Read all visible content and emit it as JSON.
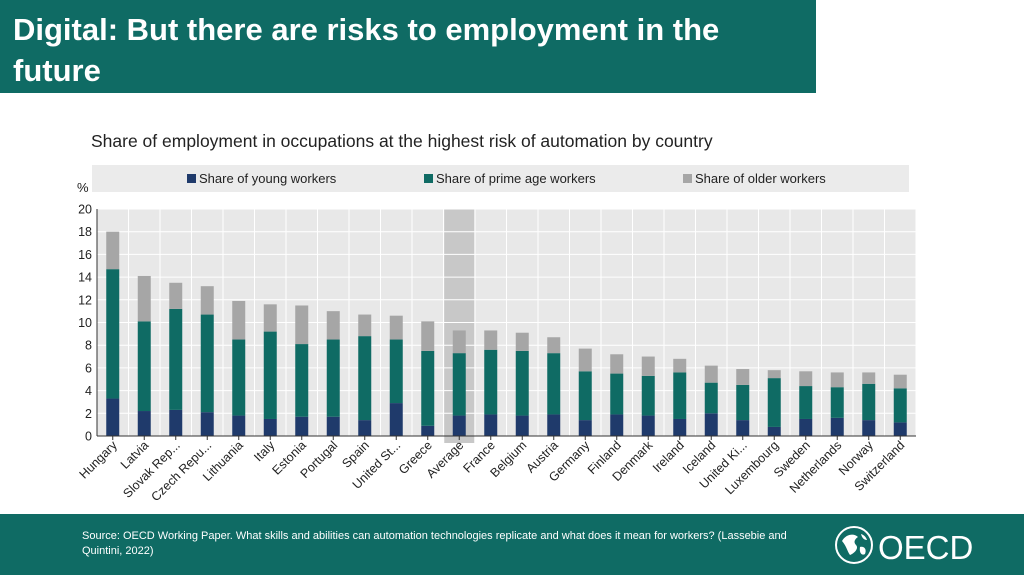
{
  "slide": {
    "title": "Digital: But there are risks to employment in the future",
    "source": "Source: OECD Working Paper. What skills and abilities can automation technologies replicate and what does it mean for workers? (Lassebie and Quintini, 2022)",
    "logo_text": "OECD"
  },
  "colors": {
    "teal_bar": "#0f6b64",
    "young": "#1f3a6b",
    "prime": "#0f6b64",
    "older": "#a6a6a6",
    "plot_bg": "#e8e8e8",
    "highlight": "#c8c8c8"
  },
  "chart_data": {
    "type": "bar",
    "stacked": true,
    "title": "Share of employment in occupations at the highest risk of automation by country",
    "ylabel": "%",
    "xlabel": "",
    "ylim": [
      0,
      20
    ],
    "yticks": [
      0,
      2,
      4,
      6,
      8,
      10,
      12,
      14,
      16,
      18,
      20
    ],
    "grid": true,
    "legend_position": "top",
    "highlight_category": "Average",
    "categories": [
      "Hungary",
      "Latvia",
      "Slovak Rep...",
      "Czech Repu...",
      "Lithuania",
      "Italy",
      "Estonia",
      "Portugal",
      "Spain",
      "United St...",
      "Greece",
      "Average",
      "France",
      "Belgium",
      "Austria",
      "Germany",
      "Finland",
      "Denmark",
      "Ireland",
      "Iceland",
      "United Ki...",
      "Luxembourg",
      "Sweden",
      "Netherlands",
      "Norway",
      "Switzerland"
    ],
    "series": [
      {
        "name": "Share of young workers",
        "values": [
          3.3,
          2.2,
          2.3,
          2.1,
          1.8,
          1.5,
          1.7,
          1.7,
          1.4,
          2.9,
          0.9,
          1.8,
          1.9,
          1.8,
          1.9,
          1.4,
          1.9,
          1.8,
          1.5,
          2.0,
          1.4,
          0.8,
          1.5,
          1.6,
          1.4,
          1.2
        ]
      },
      {
        "name": "Share of prime age workers",
        "values": [
          11.4,
          7.9,
          8.9,
          8.6,
          6.7,
          7.7,
          6.4,
          6.8,
          7.4,
          5.6,
          6.6,
          5.5,
          5.7,
          5.7,
          5.4,
          4.3,
          3.6,
          3.5,
          4.1,
          2.7,
          3.1,
          4.3,
          2.9,
          2.7,
          3.2,
          3.0
        ]
      },
      {
        "name": "Share of older workers",
        "values": [
          3.3,
          4.0,
          2.3,
          2.5,
          3.4,
          2.4,
          3.4,
          2.5,
          1.9,
          2.1,
          2.6,
          2.0,
          1.7,
          1.6,
          1.4,
          2.0,
          1.7,
          1.7,
          1.2,
          1.5,
          1.4,
          0.7,
          1.3,
          1.3,
          1.0,
          1.2
        ]
      }
    ]
  }
}
